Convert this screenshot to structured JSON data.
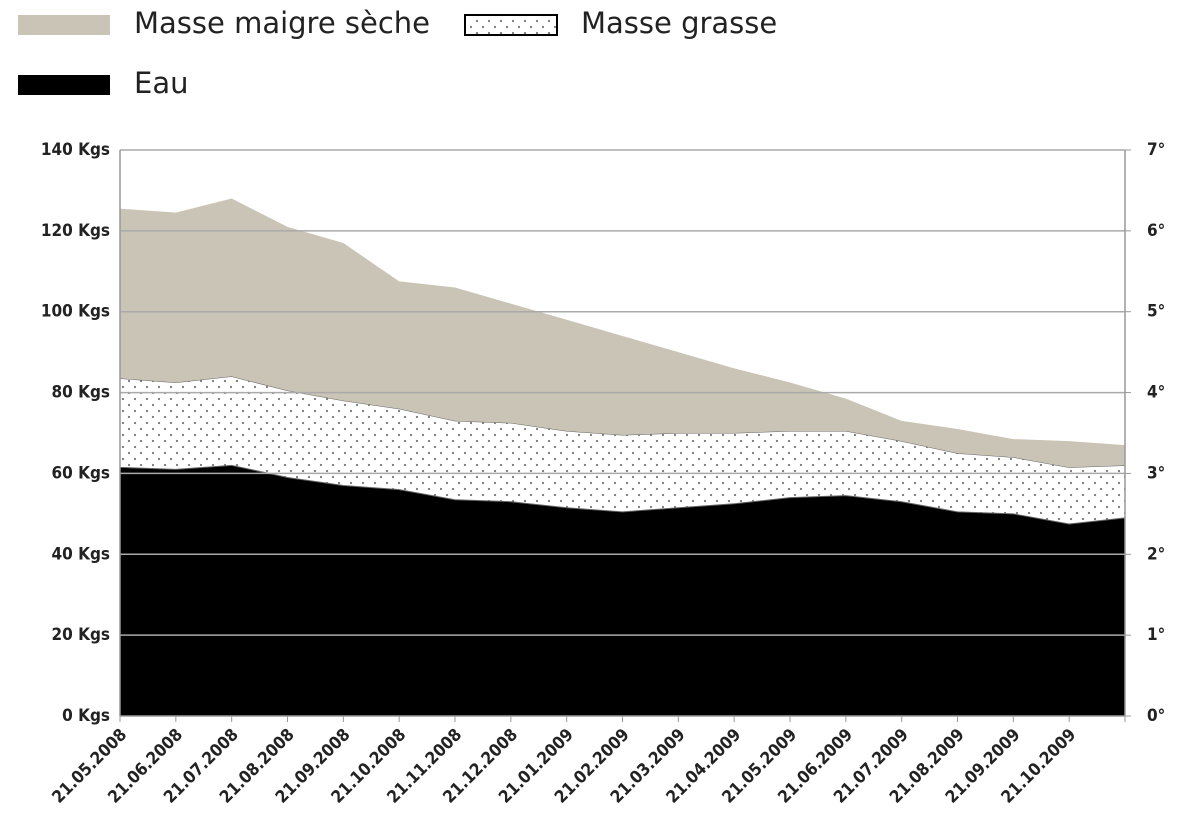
{
  "chart_data": {
    "type": "stacked_area",
    "categories": [
      "21.05.2008",
      "21.06.2008",
      "21.07.2008",
      "21.08.2008",
      "21.09.2008",
      "21.10.2008",
      "21.11.2008",
      "21.12.2008",
      "21.01.2009",
      "21.02.2009",
      "21.03.2009",
      "21.04.2009",
      "21.05.2009",
      "21.06.2009",
      "21.07.2009",
      "21.08.2009",
      "21.09.2009",
      "21.10.2009",
      null
    ],
    "series": [
      {
        "name": "Eau",
        "color": "#000000",
        "values": [
          61.5,
          61,
          62,
          59,
          57,
          56,
          53.5,
          53,
          51.5,
          50.5,
          51.5,
          52.5,
          54,
          54.5,
          53,
          50.5,
          50,
          47.5,
          49
        ]
      },
      {
        "name": "Masse grasse",
        "color": "#ffffff",
        "pattern": "dots",
        "values": [
          22,
          21.5,
          22,
          21.5,
          21,
          20,
          19.5,
          19.5,
          19,
          19,
          18.5,
          17.5,
          16.5,
          16,
          15,
          14.5,
          14,
          14,
          13
        ]
      },
      {
        "name": "Masse maigre sèche",
        "color": "#c9c4b5",
        "values": [
          42,
          42,
          44,
          40.5,
          39,
          31.5,
          33,
          29.5,
          27.5,
          24.5,
          20,
          16,
          12,
          8,
          5,
          6,
          4.5,
          6.5,
          5
        ]
      }
    ],
    "ylim": [
      0,
      140
    ],
    "yticks": [
      {
        "value": 0,
        "label": "0 Kgs"
      },
      {
        "value": 20,
        "label": "20 Kgs"
      },
      {
        "value": 40,
        "label": "40 Kgs"
      },
      {
        "value": 60,
        "label": "60 Kgs"
      },
      {
        "value": 80,
        "label": "80 Kgs"
      },
      {
        "value": 100,
        "label": "100 Kgs"
      },
      {
        "value": 120,
        "label": "120 Kgs"
      },
      {
        "value": 140,
        "label": "140 Kgs"
      }
    ],
    "y2lim": [
      0,
      7
    ],
    "y2ticks": [
      {
        "value": 0,
        "label": "0°"
      },
      {
        "value": 1,
        "label": "1°"
      },
      {
        "value": 2,
        "label": "2°"
      },
      {
        "value": 3,
        "label": "3°"
      },
      {
        "value": 4,
        "label": "4°"
      },
      {
        "value": 5,
        "label": "5°"
      },
      {
        "value": 6,
        "label": "6°"
      },
      {
        "value": 7,
        "label": "7°"
      }
    ],
    "grid": true
  }
}
